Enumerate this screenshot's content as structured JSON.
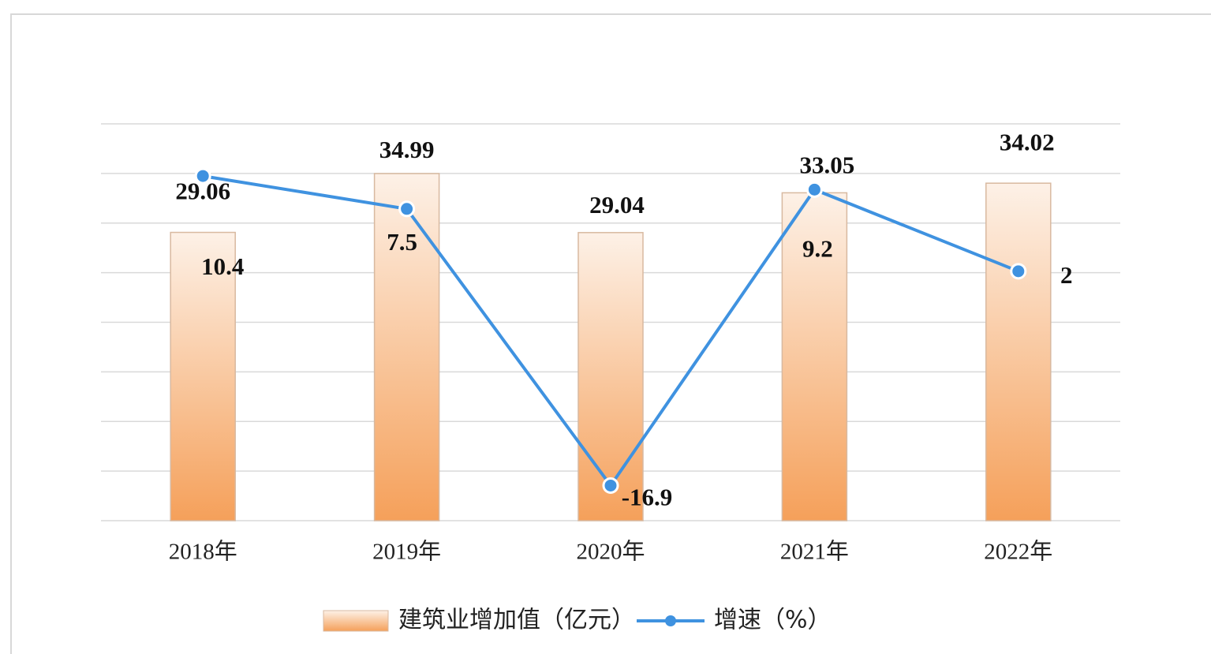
{
  "chart_data": {
    "type": "bar-line",
    "categories": [
      "2018年",
      "2019年",
      "2020年",
      "2021年",
      "2022年"
    ],
    "series": [
      {
        "name": "建筑业增加值（亿元）",
        "type": "bar",
        "color": "#f5a05a",
        "values": [
          29.06,
          34.99,
          29.04,
          33.05,
          34.02
        ]
      },
      {
        "name": "增速（%）",
        "type": "line",
        "axis": "y2",
        "color": "#3f92e0",
        "values": [
          10.4,
          7.5,
          -16.9,
          9.2,
          2.0
        ]
      }
    ],
    "ylim": [
      0,
      40
    ],
    "yticks": [
      0,
      5,
      10,
      15,
      20,
      25,
      30,
      35,
      40
    ],
    "y2lim": [
      -20,
      15
    ],
    "grid": true,
    "legend": "bottom"
  }
}
